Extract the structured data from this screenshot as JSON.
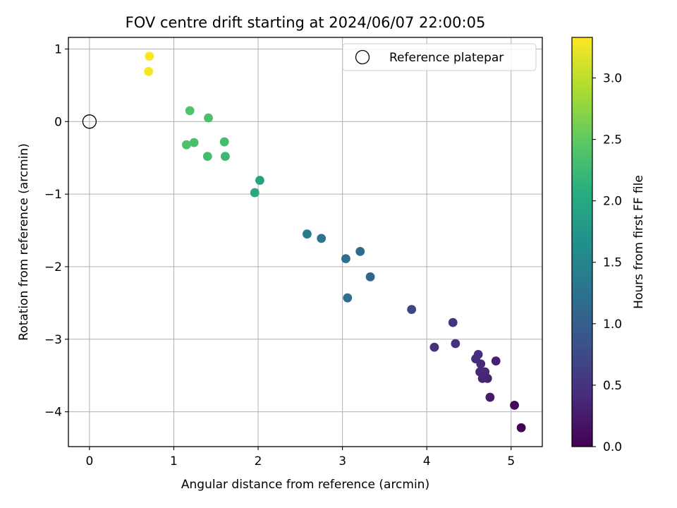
{
  "chart_data": {
    "type": "scatter",
    "title": "FOV centre drift starting at 2024/06/07 22:00:05",
    "xlabel": "Angular distance from reference (arcmin)",
    "ylabel": "Rotation from reference (arcmin)",
    "xlim": [
      -0.25,
      5.37
    ],
    "ylim": [
      -4.48,
      1.16
    ],
    "xticks": [
      0,
      1,
      2,
      3,
      4,
      5
    ],
    "xtick_labels": [
      "0",
      "1",
      "2",
      "3",
      "4",
      "5"
    ],
    "yticks": [
      1,
      0,
      -1,
      -2,
      -3,
      -4
    ],
    "ytick_labels": [
      "1",
      "0",
      "−1",
      "−2",
      "−3",
      "−4"
    ],
    "grid": true,
    "colorbar": {
      "label": "Hours from first FF file",
      "colormap": "viridis",
      "range": [
        0.0,
        3.33
      ],
      "ticks": [
        0.0,
        0.5,
        1.0,
        1.5,
        2.0,
        2.5,
        3.0
      ],
      "tick_labels": [
        "0.0",
        "0.5",
        "1.0",
        "1.5",
        "2.0",
        "2.5",
        "3.0"
      ]
    },
    "legend": {
      "placement": "top-right",
      "entries": [
        "Reference platepar"
      ]
    },
    "reference_point": {
      "x": 0.0,
      "y": 0.0,
      "label": "Reference platepar"
    },
    "points": [
      {
        "x": 5.12,
        "y": -4.22,
        "hours": 0.0
      },
      {
        "x": 5.04,
        "y": -3.91,
        "hours": 0.08
      },
      {
        "x": 4.75,
        "y": -3.8,
        "hours": 0.25
      },
      {
        "x": 4.82,
        "y": -3.3,
        "hours": 0.3
      },
      {
        "x": 4.72,
        "y": -3.54,
        "hours": 0.33
      },
      {
        "x": 4.66,
        "y": -3.54,
        "hours": 0.35
      },
      {
        "x": 4.69,
        "y": -3.45,
        "hours": 0.37
      },
      {
        "x": 4.63,
        "y": -3.45,
        "hours": 0.38
      },
      {
        "x": 4.64,
        "y": -3.34,
        "hours": 0.4
      },
      {
        "x": 4.58,
        "y": -3.27,
        "hours": 0.42
      },
      {
        "x": 4.61,
        "y": -3.21,
        "hours": 0.43
      },
      {
        "x": 4.09,
        "y": -3.11,
        "hours": 0.45
      },
      {
        "x": 4.34,
        "y": -3.06,
        "hours": 0.47
      },
      {
        "x": 4.31,
        "y": -2.77,
        "hours": 0.5
      },
      {
        "x": 3.82,
        "y": -2.59,
        "hours": 0.7
      },
      {
        "x": 3.06,
        "y": -2.43,
        "hours": 1.2
      },
      {
        "x": 3.33,
        "y": -2.14,
        "hours": 1.1
      },
      {
        "x": 3.21,
        "y": -1.79,
        "hours": 1.15
      },
      {
        "x": 3.04,
        "y": -1.89,
        "hours": 1.2
      },
      {
        "x": 2.75,
        "y": -1.61,
        "hours": 1.3
      },
      {
        "x": 2.58,
        "y": -1.55,
        "hours": 1.4
      },
      {
        "x": 2.02,
        "y": -0.81,
        "hours": 1.9
      },
      {
        "x": 1.96,
        "y": -0.98,
        "hours": 2.0
      },
      {
        "x": 1.61,
        "y": -0.48,
        "hours": 2.25
      },
      {
        "x": 1.4,
        "y": -0.48,
        "hours": 2.3
      },
      {
        "x": 1.6,
        "y": -0.28,
        "hours": 2.3
      },
      {
        "x": 1.24,
        "y": -0.29,
        "hours": 2.35
      },
      {
        "x": 1.15,
        "y": -0.32,
        "hours": 2.38
      },
      {
        "x": 1.19,
        "y": 0.15,
        "hours": 2.4
      },
      {
        "x": 1.41,
        "y": 0.05,
        "hours": 2.35
      },
      {
        "x": 0.7,
        "y": 0.69,
        "hours": 3.3
      },
      {
        "x": 0.71,
        "y": 0.9,
        "hours": 3.33
      }
    ]
  }
}
